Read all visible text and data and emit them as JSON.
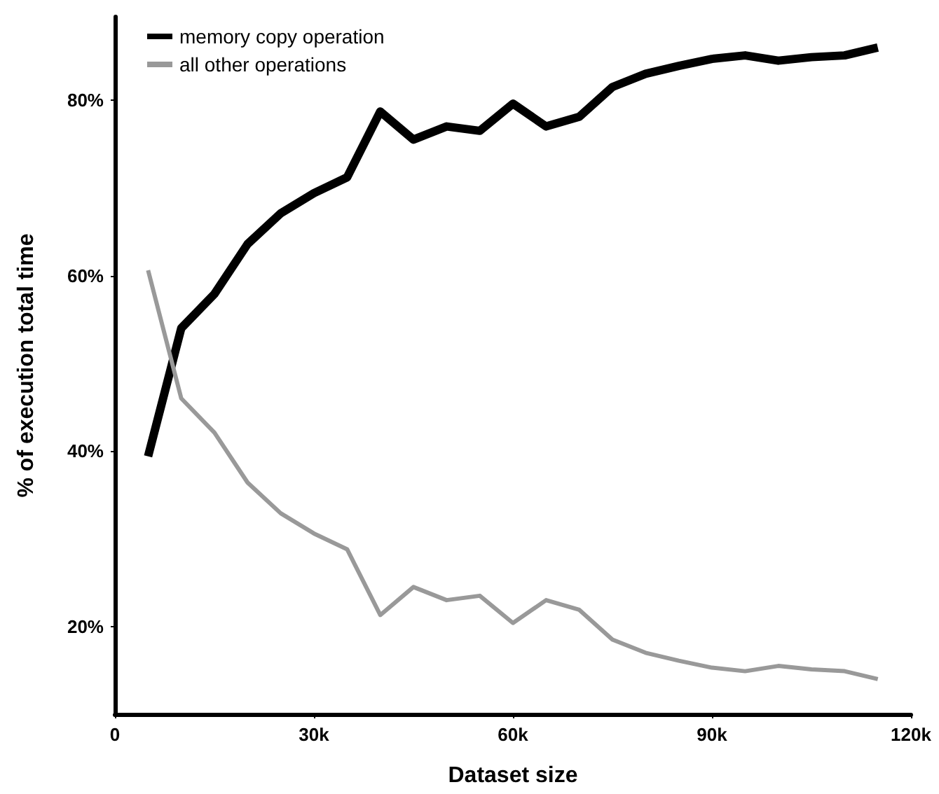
{
  "chart_data": {
    "type": "line",
    "xlabel": "Dataset size",
    "ylabel": "% of execution total time",
    "x": [
      5000,
      10000,
      15000,
      20000,
      25000,
      30000,
      35000,
      40000,
      45000,
      50000,
      55000,
      60000,
      65000,
      70000,
      75000,
      80000,
      85000,
      90000,
      95000,
      100000,
      105000,
      110000,
      115000
    ],
    "series": [
      {
        "name": "memory copy operation",
        "color": "#000000",
        "values": [
          39.4,
          54.0,
          57.9,
          63.6,
          67.1,
          69.4,
          71.2,
          78.7,
          75.5,
          77.0,
          76.5,
          79.6,
          77.0,
          78.1,
          81.5,
          83.0,
          83.9,
          84.7,
          85.1,
          84.5,
          84.9,
          85.1,
          86.0
        ]
      },
      {
        "name": "all other operations",
        "color": "#999999",
        "values": [
          60.6,
          46.0,
          42.1,
          36.4,
          32.9,
          30.6,
          28.8,
          21.3,
          24.5,
          23.0,
          23.5,
          20.4,
          23.0,
          21.9,
          18.5,
          17.0,
          16.1,
          15.3,
          14.9,
          15.5,
          15.1,
          14.9,
          14.0
        ]
      }
    ],
    "xlim": [
      0,
      120000
    ],
    "ylim": [
      10,
      89.5
    ],
    "xticks": [
      0,
      {
        "value": 30000,
        "label": "30k"
      },
      {
        "value": 60000,
        "label": "60k"
      },
      {
        "value": 90000,
        "label": "90k"
      },
      {
        "value": 120000,
        "label": "120k"
      }
    ],
    "yticks": [
      {
        "value": 20,
        "label": "20%"
      },
      {
        "value": 40,
        "label": "40%"
      },
      {
        "value": 60,
        "label": "60%"
      },
      {
        "value": 80,
        "label": "80%"
      }
    ],
    "grid": false,
    "legend": "top left",
    "marker": "none",
    "line_style": "solid"
  }
}
